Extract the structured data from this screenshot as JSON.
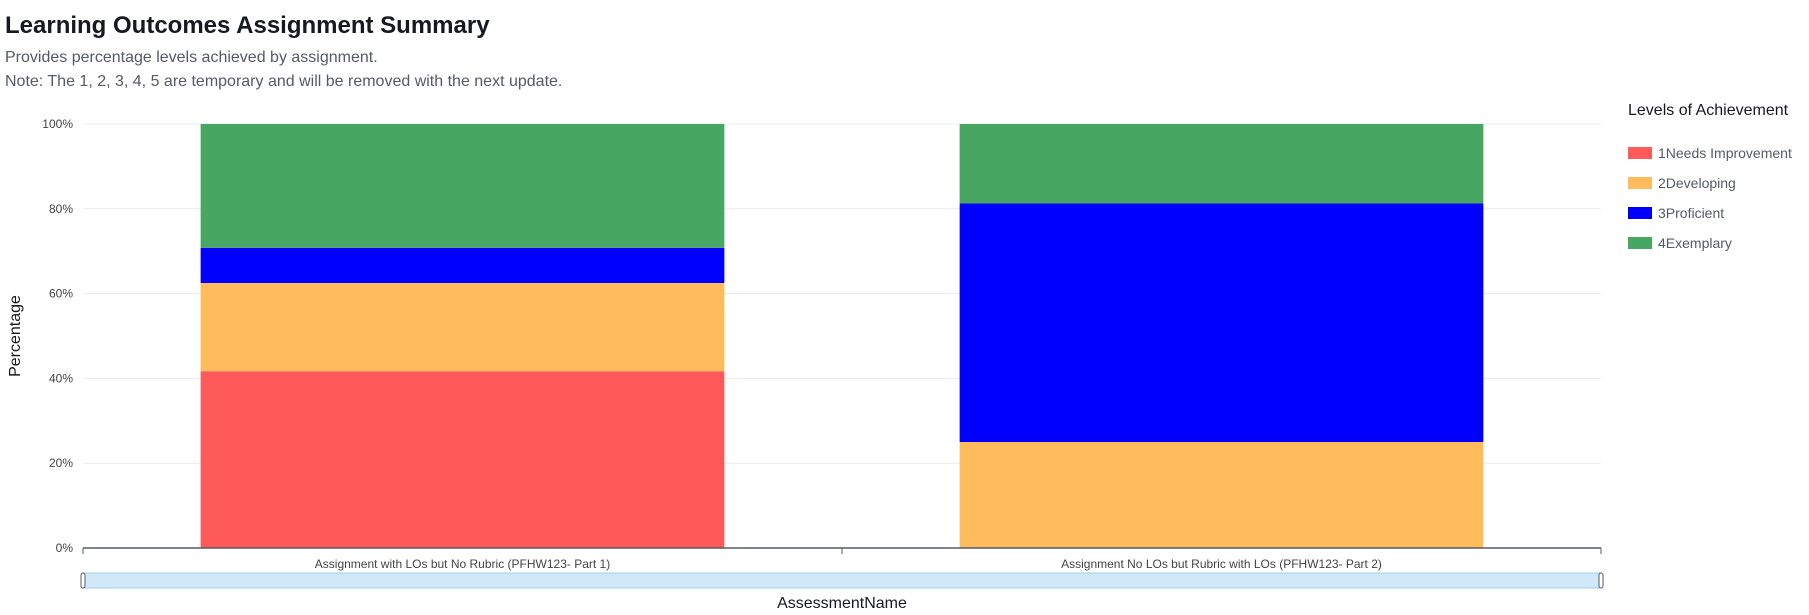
{
  "header": {
    "title": "Learning Outcomes Assignment Summary",
    "subtitle": "Provides percentage levels achieved by assignment.",
    "note": "Note: The 1, 2, 3, 4, 5 are temporary and will be removed with the next update."
  },
  "legend": {
    "title": "Levels of Achievement"
  },
  "chart_data": {
    "type": "bar",
    "stacked": true,
    "categories": [
      "Assignment with LOs but No Rubric (PFHW123- Part 1)",
      "Assignment No LOs but Rubric with LOs (PFHW123- Part 2)"
    ],
    "series": [
      {
        "name": "1Needs Improvement",
        "color": "#ff5a5a",
        "values": [
          41.7,
          0
        ]
      },
      {
        "name": "2Developing",
        "color": "#ffbb5c",
        "values": [
          20.8,
          25
        ]
      },
      {
        "name": "3Proficient",
        "color": "#0000ff",
        "values": [
          8.3,
          56.25
        ]
      },
      {
        "name": "4Exemplary",
        "color": "#47a661",
        "values": [
          29.2,
          18.75
        ]
      }
    ],
    "ylabel": "Percentage",
    "xlabel": "AssessmentName",
    "ylim": [
      0,
      100
    ],
    "yticks": [
      "0%",
      "20%",
      "40%",
      "60%",
      "80%",
      "100%"
    ],
    "grid": true,
    "legend_position": "right"
  },
  "colors": {
    "grid": "#e9ebed",
    "axis": "#545b64",
    "scrollbar": "#d1e8f8",
    "scrollbar_border": "#9fcdeb"
  }
}
